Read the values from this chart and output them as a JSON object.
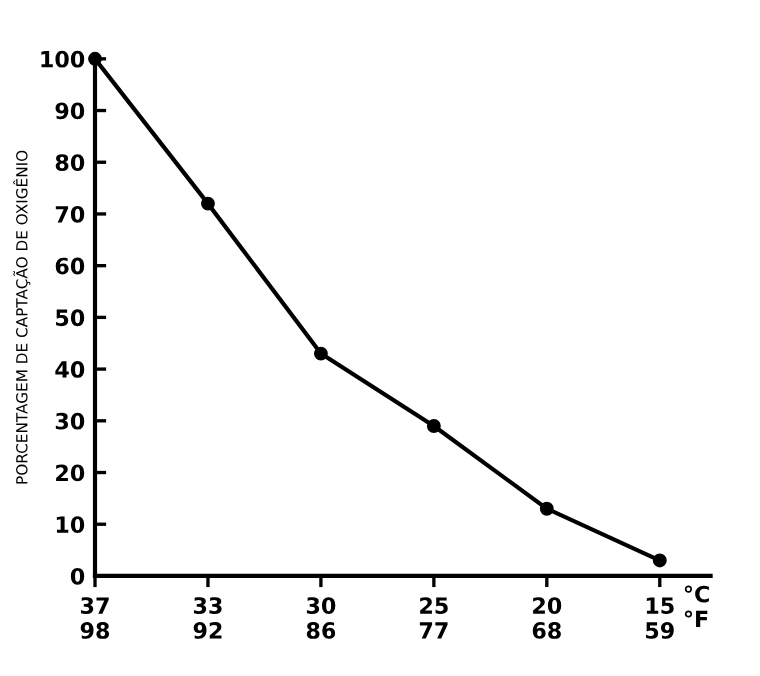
{
  "chart_data": {
    "type": "line",
    "ylabel": "PORCENTAGEM DE CAPTAÇÃO DE OXIGÊNIO",
    "xlabel": "°C\n°F",
    "categories": [
      "37\n98",
      "33\n92",
      "30\n86",
      "25\n77",
      "20\n68",
      "15\n59"
    ],
    "series": [
      {
        "color": "#000000",
        "values": [
          100,
          72,
          43,
          29,
          13,
          3
        ]
      }
    ],
    "ylim": [
      0,
      100
    ],
    "yticks": [
      0,
      10,
      20,
      30,
      40,
      50,
      60,
      70,
      80,
      90,
      100
    ],
    "marker": "circle",
    "line_style": "solid",
    "grid": false,
    "legend": false
  }
}
